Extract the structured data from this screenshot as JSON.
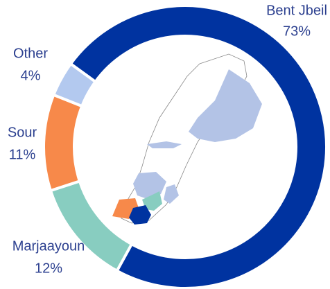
{
  "chart_data": {
    "type": "donut",
    "categories": [
      "Bent Jbeil",
      "Marjaayoun",
      "Sour",
      "Other"
    ],
    "values": [
      73,
      12,
      11,
      4
    ],
    "value_labels": [
      "73%",
      "12%",
      "11%",
      "4%"
    ],
    "colors": [
      "#0033a0",
      "#88cdc0",
      "#f7894a",
      "#b3c9ef"
    ]
  }
}
